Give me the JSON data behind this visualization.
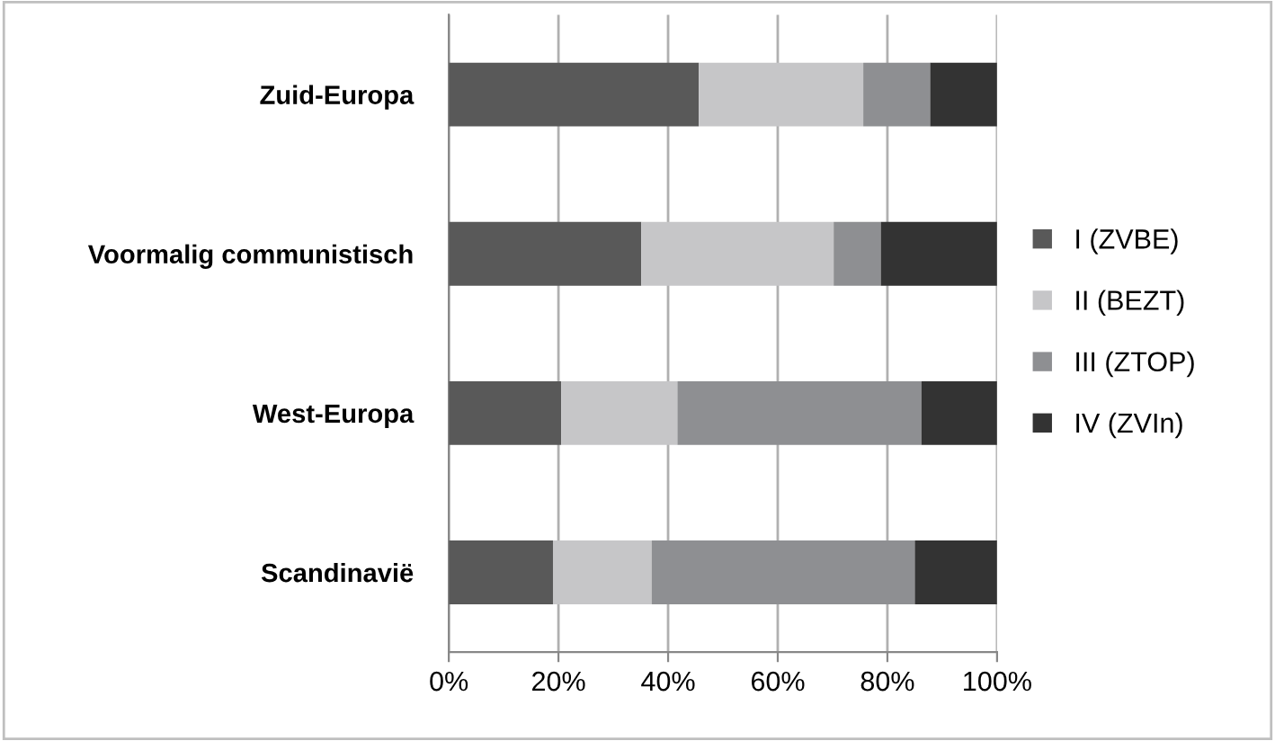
{
  "chart_data": {
    "type": "bar",
    "orientation": "horizontal",
    "stacked": true,
    "categories": [
      "Zuid-Europa",
      "Voormalig communistisch",
      "West-Europa",
      "Scandinavië"
    ],
    "series": [
      {
        "name": "I (ZVBE)",
        "color": "#595959",
        "values": [
          45.6,
          35.1,
          20.5,
          19.0
        ]
      },
      {
        "name": "II (BEZT)",
        "color": "#c6c6c8",
        "values": [
          30.0,
          35.1,
          21.2,
          18.0
        ]
      },
      {
        "name": "III (ZTOP)",
        "color": "#8e8f92",
        "values": [
          12.2,
          8.6,
          44.5,
          48.0
        ]
      },
      {
        "name": "IV (ZVIn)",
        "color": "#333333",
        "values": [
          12.2,
          21.2,
          13.8,
          15.0
        ]
      }
    ],
    "xlim": [
      0,
      100
    ],
    "xticks": [
      {
        "value": 0,
        "label": "0%"
      },
      {
        "value": 20,
        "label": "20%"
      },
      {
        "value": 40,
        "label": "40%"
      },
      {
        "value": 60,
        "label": "60%"
      },
      {
        "value": 80,
        "label": "80%"
      },
      {
        "value": 100,
        "label": "100%"
      }
    ],
    "grid": "x",
    "legend": "right"
  }
}
